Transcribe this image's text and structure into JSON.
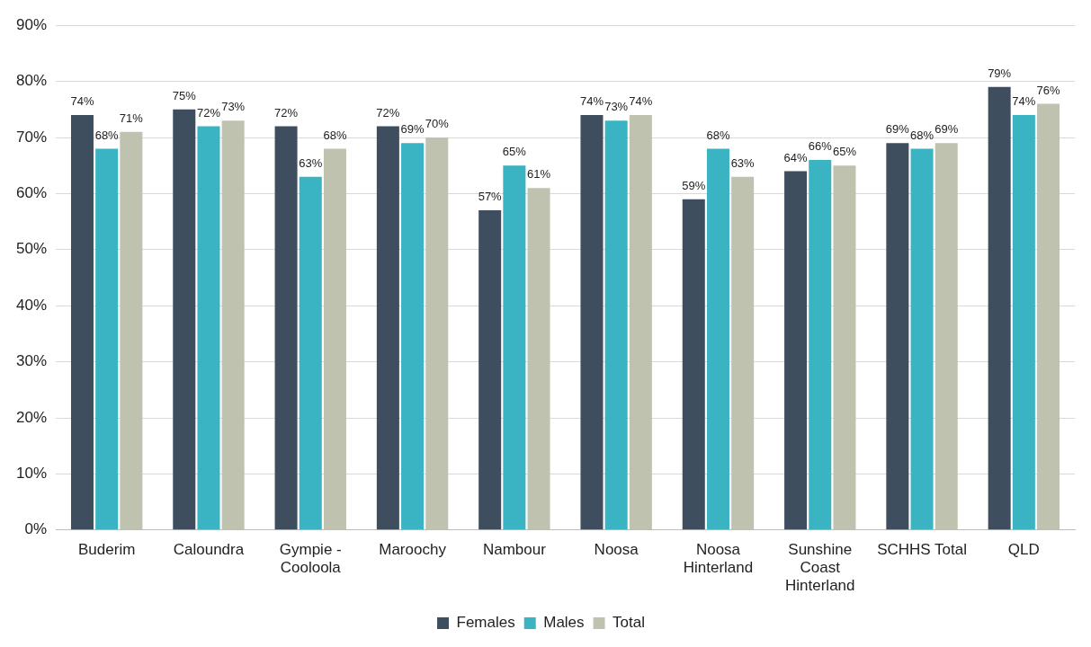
{
  "chart_data": {
    "type": "bar",
    "categories": [
      "Buderim",
      "Caloundra",
      "Gympie - Cooloola",
      "Maroochy",
      "Nambour",
      "Noosa",
      "Noosa Hinterland",
      "Sunshine Coast Hinterland",
      "SCHHS Total",
      "QLD"
    ],
    "series": [
      {
        "name": "Females",
        "color": "#3f4e5f",
        "values": [
          74,
          75,
          72,
          72,
          57,
          74,
          59,
          64,
          69,
          79
        ],
        "value_labels": [
          "74%",
          "75%",
          "72%",
          "72%",
          "57%",
          "74%",
          "59%",
          "64%",
          "69%",
          "79%"
        ]
      },
      {
        "name": "Males",
        "color": "#3ab3c3",
        "values": [
          68,
          72,
          63,
          69,
          65,
          73,
          68,
          66,
          68,
          74
        ],
        "value_labels": [
          "68%",
          "72%",
          "63%",
          "69%",
          "65%",
          "73%",
          "68%",
          "66%",
          "68%",
          "74%"
        ]
      },
      {
        "name": "Total",
        "color": "#c0c2b0",
        "values": [
          71,
          73,
          68,
          70,
          61,
          74,
          63,
          65,
          69,
          76
        ],
        "value_labels": [
          "71%",
          "73%",
          "68%",
          "70%",
          "61%",
          "74%",
          "63%",
          "65%",
          "69%",
          "76%"
        ]
      }
    ],
    "ylim": [
      0,
      90
    ],
    "yticks": [
      {
        "value": 0,
        "label": "0%"
      },
      {
        "value": 10,
        "label": "10%"
      },
      {
        "value": 20,
        "label": "20%"
      },
      {
        "value": 30,
        "label": "30%"
      },
      {
        "value": 40,
        "label": "40%"
      },
      {
        "value": 50,
        "label": "50%"
      },
      {
        "value": 60,
        "label": "60%"
      },
      {
        "value": 70,
        "label": "70%"
      },
      {
        "value": 80,
        "label": "80%"
      },
      {
        "value": 90,
        "label": "90%"
      }
    ],
    "grid": "y",
    "legend": "bottom"
  }
}
